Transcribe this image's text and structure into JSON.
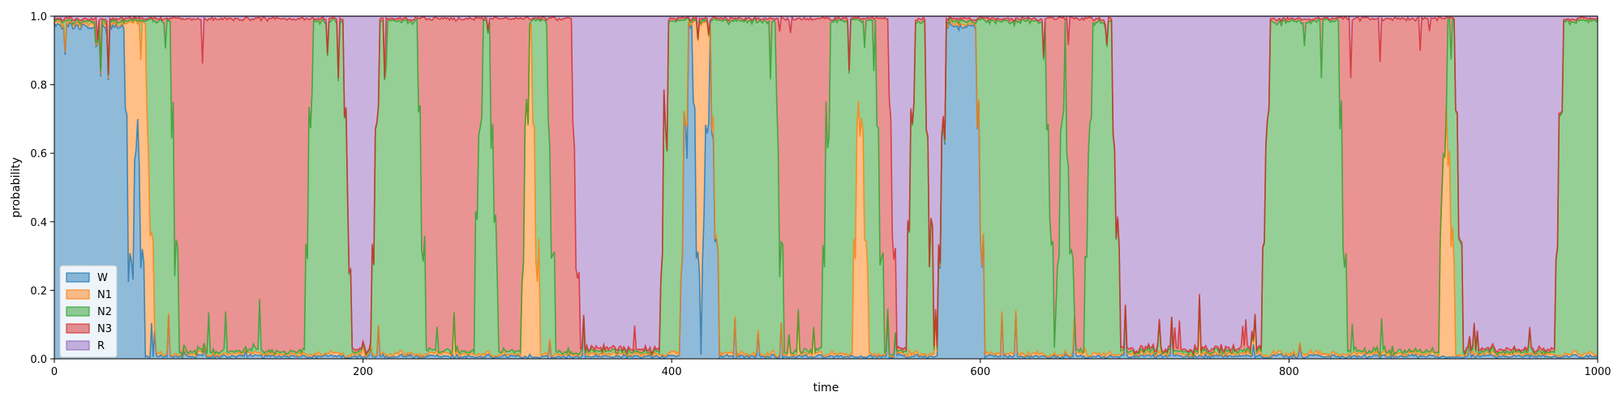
{
  "chart_data": {
    "type": "area",
    "stacked": true,
    "xlabel": "time",
    "ylabel": "probability",
    "xlim": [
      0,
      1000
    ],
    "ylim": [
      0,
      1
    ],
    "xticks": [
      0,
      200,
      400,
      600,
      800,
      1000
    ],
    "yticks": [
      0.0,
      0.2,
      0.4,
      0.6,
      0.8,
      1.0
    ],
    "ytick_labels": [
      "0.0",
      "0.2",
      "0.4",
      "0.6",
      "0.8",
      "1.0"
    ],
    "grid": false,
    "legend_position": "lower-left",
    "series_colors": {
      "W": "#1f77b4",
      "N1": "#ff7f0e",
      "N2": "#2ca02c",
      "N3": "#d62728",
      "R": "#9467bd"
    },
    "fill_opacity": 0.5,
    "segments": [
      {
        "start": 0,
        "end": 48,
        "label": "W"
      },
      {
        "start": 48,
        "end": 52,
        "label": "N1"
      },
      {
        "start": 52,
        "end": 56,
        "label": "W"
      },
      {
        "start": 56,
        "end": 62,
        "label": "N1"
      },
      {
        "start": 62,
        "end": 78,
        "label": "N2"
      },
      {
        "start": 78,
        "end": 165,
        "label": "N3"
      },
      {
        "start": 165,
        "end": 190,
        "label": "N2"
      },
      {
        "start": 190,
        "end": 208,
        "label": "R"
      },
      {
        "start": 208,
        "end": 238,
        "label": "N2"
      },
      {
        "start": 238,
        "end": 275,
        "label": "N3"
      },
      {
        "start": 275,
        "end": 285,
        "label": "N2"
      },
      {
        "start": 285,
        "end": 305,
        "label": "N3"
      },
      {
        "start": 305,
        "end": 312,
        "label": "N1"
      },
      {
        "start": 312,
        "end": 322,
        "label": "N2"
      },
      {
        "start": 322,
        "end": 338,
        "label": "N3"
      },
      {
        "start": 338,
        "end": 395,
        "label": "R"
      },
      {
        "start": 395,
        "end": 408,
        "label": "N2"
      },
      {
        "start": 408,
        "end": 416,
        "label": "W"
      },
      {
        "start": 416,
        "end": 422,
        "label": "N1"
      },
      {
        "start": 422,
        "end": 428,
        "label": "W"
      },
      {
        "start": 428,
        "end": 470,
        "label": "N2"
      },
      {
        "start": 470,
        "end": 500,
        "label": "N3"
      },
      {
        "start": 500,
        "end": 520,
        "label": "N2"
      },
      {
        "start": 520,
        "end": 525,
        "label": "N1"
      },
      {
        "start": 525,
        "end": 535,
        "label": "N2"
      },
      {
        "start": 535,
        "end": 543,
        "label": "N3"
      },
      {
        "start": 543,
        "end": 555,
        "label": "R"
      },
      {
        "start": 555,
        "end": 567,
        "label": "N2"
      },
      {
        "start": 567,
        "end": 575,
        "label": "R"
      },
      {
        "start": 575,
        "end": 600,
        "label": "W"
      },
      {
        "start": 600,
        "end": 645,
        "label": "N2"
      },
      {
        "start": 645,
        "end": 652,
        "label": "N3"
      },
      {
        "start": 652,
        "end": 658,
        "label": "N2"
      },
      {
        "start": 658,
        "end": 670,
        "label": "N3"
      },
      {
        "start": 670,
        "end": 688,
        "label": "N2"
      },
      {
        "start": 688,
        "end": 785,
        "label": "R"
      },
      {
        "start": 785,
        "end": 835,
        "label": "N2"
      },
      {
        "start": 835,
        "end": 900,
        "label": "N3"
      },
      {
        "start": 900,
        "end": 905,
        "label": "N1"
      },
      {
        "start": 905,
        "end": 910,
        "label": "N2"
      },
      {
        "start": 910,
        "end": 975,
        "label": "R"
      },
      {
        "start": 975,
        "end": 1000,
        "label": "N2"
      }
    ],
    "legend": [
      {
        "label": "W",
        "color": "#1f77b4"
      },
      {
        "label": "N1",
        "color": "#ff7f0e"
      },
      {
        "label": "N2",
        "color": "#2ca02c"
      },
      {
        "label": "N3",
        "color": "#d62728"
      },
      {
        "label": "R",
        "color": "#9467bd"
      }
    ]
  }
}
